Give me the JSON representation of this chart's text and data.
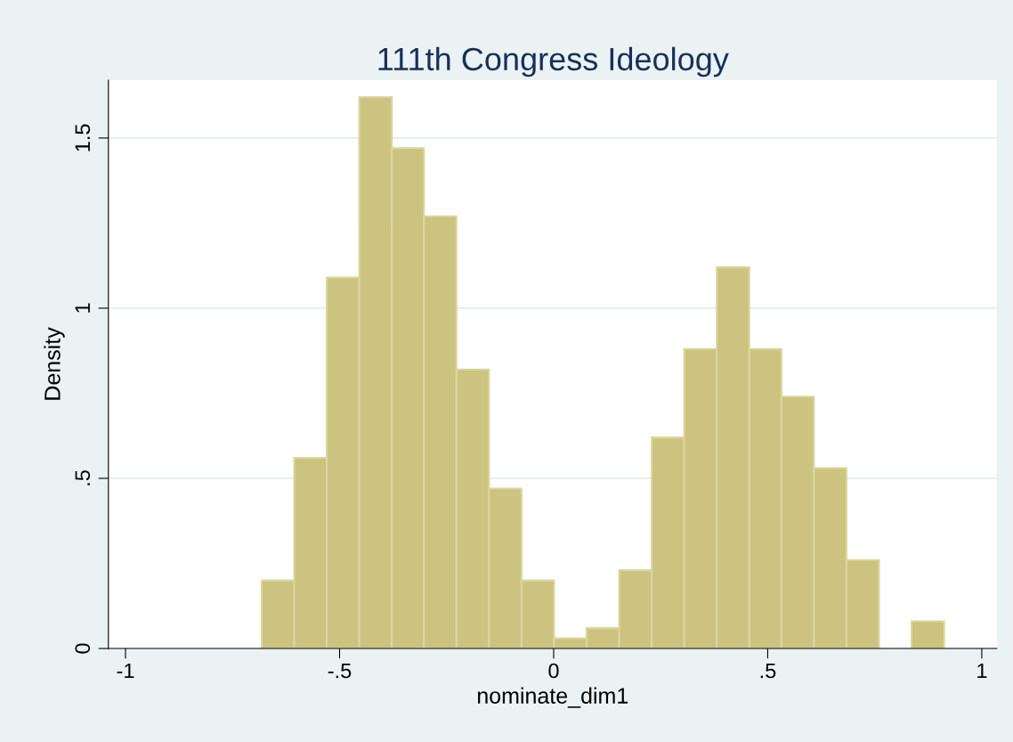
{
  "chart_data": {
    "type": "histogram",
    "title": "111th Congress Ideology",
    "xlabel": "nominate_dim1",
    "ylabel": "Density",
    "bins": [
      -0.682,
      -0.606,
      -0.53,
      -0.454,
      -0.378,
      -0.303,
      -0.227,
      -0.151,
      -0.075,
      0.001,
      0.077,
      0.153,
      0.229,
      0.305,
      0.381,
      0.457,
      0.532,
      0.608,
      0.684,
      0.76,
      0.836,
      0.912
    ],
    "values": [
      0.2,
      0.56,
      1.09,
      1.62,
      1.47,
      1.27,
      0.82,
      0.47,
      0.2,
      0.03,
      0.06,
      0.23,
      0.62,
      0.88,
      1.12,
      0.88,
      0.74,
      0.53,
      0.26,
      0,
      0.08
    ],
    "color": "#cbc37f",
    "xlim": [
      -1.04,
      1.035
    ],
    "ylim": [
      0,
      1.67
    ],
    "xticks": [
      {
        "value": -1,
        "label": "-1"
      },
      {
        "value": -0.5,
        "label": "-.5"
      },
      0,
      {
        "value": 0.5,
        "label": ".5"
      },
      1
    ],
    "yticks": [
      0,
      {
        "value": 0.5,
        "label": ".5"
      },
      1,
      {
        "value": 1.5,
        "label": "1.5"
      }
    ],
    "grid": "y"
  }
}
